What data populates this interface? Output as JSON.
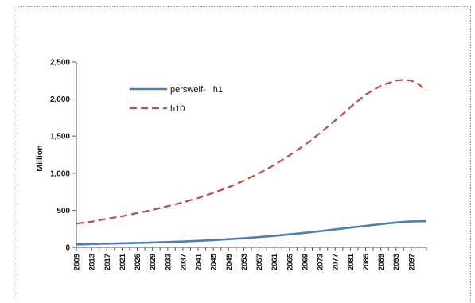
{
  "chart_data": {
    "type": "line",
    "title": "",
    "xlabel": "",
    "ylabel": "Million",
    "ylim": [
      0,
      2500
    ],
    "yticks": [
      0,
      500,
      1000,
      1500,
      2000,
      2500
    ],
    "ytick_labels": [
      "0",
      "500",
      "1,000",
      "1,500",
      "2,000",
      "2,500"
    ],
    "x_range": [
      2009,
      2101
    ],
    "xtick_labels": [
      "2009",
      "2013",
      "2017",
      "2021",
      "2025",
      "2029",
      "2033",
      "2037",
      "2041",
      "2045",
      "2049",
      "2053",
      "2057",
      "2061",
      "2065",
      "2069",
      "2073",
      "2077",
      "2081",
      "2085",
      "2089",
      "2093",
      "2097"
    ],
    "grid": false,
    "legend_position": "top-left",
    "series": [
      {
        "name": "perswelf-   h1",
        "color": "#4a7ebb",
        "style": "solid",
        "x": [
          2009,
          2013,
          2017,
          2021,
          2025,
          2029,
          2033,
          2037,
          2041,
          2045,
          2049,
          2053,
          2057,
          2061,
          2065,
          2069,
          2073,
          2077,
          2081,
          2085,
          2089,
          2093,
          2097,
          2101
        ],
        "values": [
          40,
          45,
          50,
          55,
          60,
          65,
          72,
          78,
          88,
          98,
          110,
          122,
          138,
          155,
          175,
          195,
          218,
          242,
          266,
          290,
          313,
          335,
          350,
          352
        ]
      },
      {
        "name": "h10",
        "color": "#be4b48",
        "style": "dashed",
        "x": [
          2009,
          2013,
          2017,
          2021,
          2025,
          2029,
          2033,
          2037,
          2041,
          2045,
          2049,
          2053,
          2057,
          2061,
          2065,
          2069,
          2073,
          2077,
          2081,
          2085,
          2089,
          2093,
          2095,
          2097,
          2099,
          2101
        ],
        "values": [
          320,
          345,
          385,
          420,
          460,
          505,
          555,
          605,
          665,
          735,
          810,
          900,
          1000,
          1110,
          1240,
          1380,
          1540,
          1710,
          1890,
          2060,
          2180,
          2250,
          2260,
          2250,
          2200,
          2110
        ]
      }
    ]
  }
}
